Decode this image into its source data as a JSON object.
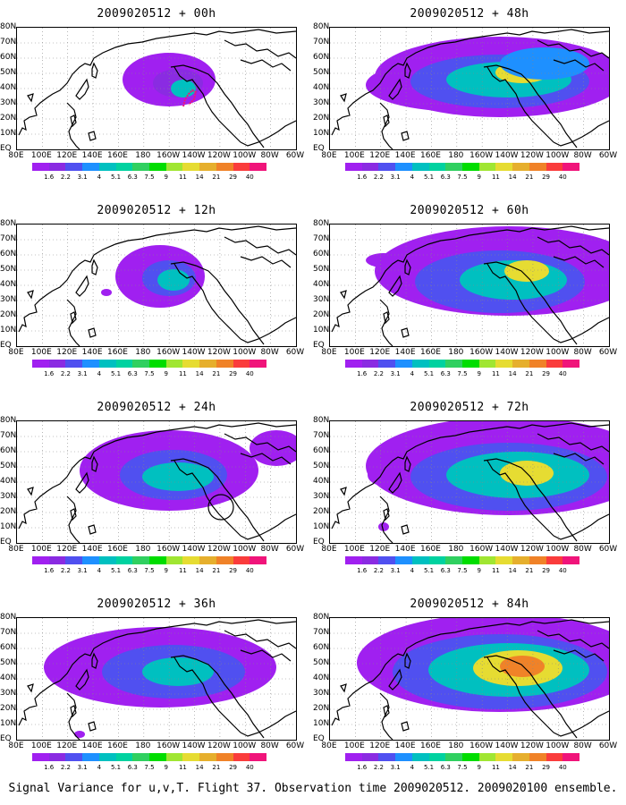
{
  "panels": [
    {
      "title": "2009020512 + 00h"
    },
    {
      "title": "2009020512 + 48h"
    },
    {
      "title": "2009020512 + 12h"
    },
    {
      "title": "2009020512 + 60h"
    },
    {
      "title": "2009020512 + 24h"
    },
    {
      "title": "2009020512 + 72h"
    },
    {
      "title": "2009020512 + 36h"
    },
    {
      "title": "2009020512 + 84h"
    }
  ],
  "lat_labels": [
    "80N",
    "70N",
    "60N",
    "50N",
    "40N",
    "30N",
    "20N",
    "10N",
    "EQ"
  ],
  "lon_labels": [
    "80E",
    "100E",
    "120E",
    "140E",
    "160E",
    "180",
    "160W",
    "140W",
    "120W",
    "100W",
    "80W",
    "60W"
  ],
  "colorbar": {
    "labels": [
      "1.6",
      "2.2",
      "3.1",
      "4",
      "5.1",
      "6.3",
      "7.5",
      "9",
      "11",
      "14",
      "21",
      "29",
      "40"
    ],
    "colors": [
      "#a020f0",
      "#8a2be2",
      "#5050f0",
      "#1e90ff",
      "#00c0c0",
      "#00d2a0",
      "#30d060",
      "#00dd00",
      "#a0e632",
      "#e6dc32",
      "#e6af2d",
      "#f08228",
      "#fa3c3c",
      "#f0147a"
    ]
  },
  "caption": "Signal Variance for u,v,T. Flight 37. Observation time 2009020512. 2009020100 ensemble."
}
